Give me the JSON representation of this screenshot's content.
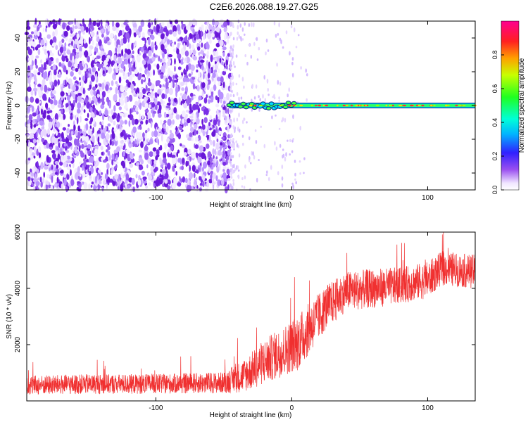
{
  "title": "C2E6.2026.088.19.27.G25",
  "chart_data": [
    {
      "type": "heatmap",
      "name": "spectrogram",
      "xlabel": "Height of straight line (km)",
      "ylabel": "Frequency (Hz)",
      "xlim": [
        -195,
        135
      ],
      "ylim": [
        -50,
        50
      ],
      "x_ticks": [
        -100,
        0,
        100
      ],
      "x_tick_labels": [
        "-100",
        "0",
        "100"
      ],
      "y_ticks": [
        -40,
        -20,
        0,
        20,
        40
      ],
      "y_tick_labels": [
        "-40",
        "-20",
        "0",
        "20",
        "40"
      ],
      "noise_region_x": [
        -195,
        -45
      ],
      "carrier": {
        "x_start": -46,
        "x_end": 135,
        "frequency_hz": 0,
        "peak_amplitude": 0.95
      },
      "colorbar": {
        "label": "Normalized spectral amplitude",
        "range": [
          0.0,
          1.0
        ],
        "ticks": [
          0.0,
          0.2,
          0.4,
          0.6,
          0.8
        ],
        "tick_labels": [
          "0.0",
          "0.2",
          "0.4",
          "0.6",
          "0.8"
        ]
      }
    },
    {
      "type": "line",
      "name": "snr",
      "xlabel": "Height of straight line (km)",
      "ylabel": "SNR (10 * v/v)",
      "xlim": [
        -195,
        135
      ],
      "ylim": [
        0,
        6000
      ],
      "x_ticks": [
        -100,
        0,
        100
      ],
      "x_tick_labels": [
        "-100",
        "0",
        "100"
      ],
      "y_ticks": [
        2000,
        4000,
        6000
      ],
      "y_tick_labels": [
        "2000",
        "4000",
        "6000"
      ],
      "line_color": "#f03030",
      "series_trend": {
        "x": [
          -195,
          -150,
          -100,
          -50,
          -35,
          -20,
          -5,
          5,
          15,
          25,
          40,
          60,
          80,
          100,
          110,
          120,
          135
        ],
        "y": [
          550,
          600,
          600,
          650,
          900,
          1400,
          1800,
          2100,
          2700,
          3300,
          3900,
          4000,
          4100,
          4300,
          4700,
          4650,
          4600
        ],
        "noise_amplitude": [
          350,
          350,
          350,
          380,
          600,
          800,
          900,
          1000,
          900,
          800,
          700,
          700,
          650,
          650,
          600,
          600,
          600
        ]
      }
    }
  ]
}
